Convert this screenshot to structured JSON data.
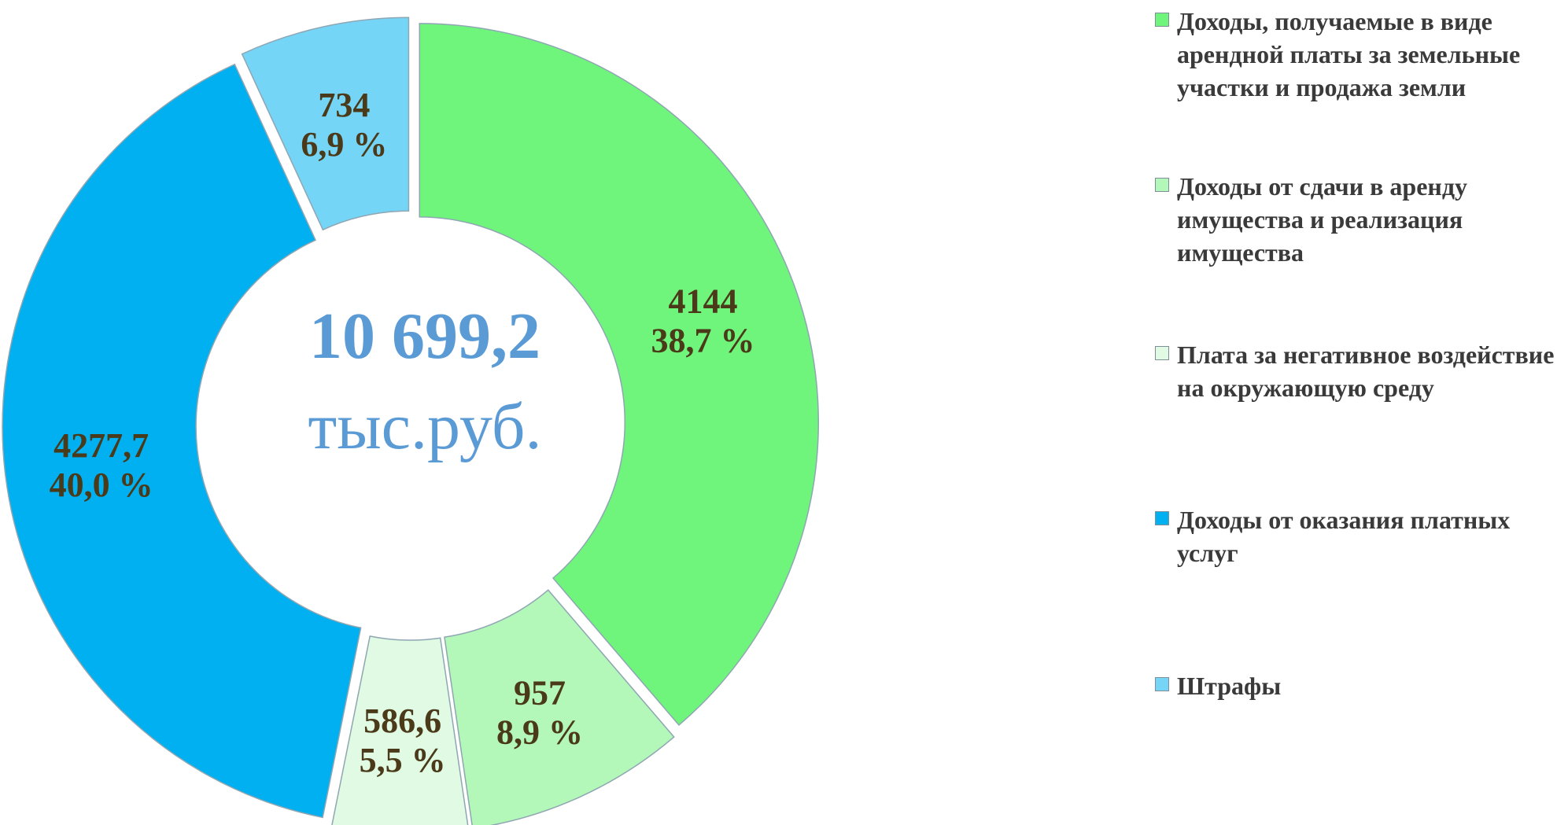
{
  "chart_data": {
    "type": "donut",
    "categories": [
      "Доходы, получаемые в виде арендной платы за земельные участки и продажа земли",
      "Доходы от сдачи в аренду имущества и реализация имущества",
      "Плата за негативное воздействие на окружающую среду",
      "Доходы от оказания платных услуг",
      "Штрафы"
    ],
    "values": [
      4144,
      957,
      586.6,
      4277.7,
      734
    ],
    "value_labels": [
      "4144",
      "957",
      "586,6",
      "4277,7",
      "734"
    ],
    "percent_labels": [
      "38,7 %",
      "8,9 %",
      "5,5 %",
      "40,0 %",
      "6,9 %"
    ],
    "colors": [
      "#6ff57c",
      "#b3f7b9",
      "#e0fae3",
      "#00b0f0",
      "#75d5f7"
    ],
    "center_label": "10 699,2",
    "center_unit": "тыс.руб.",
    "legend": "right"
  }
}
